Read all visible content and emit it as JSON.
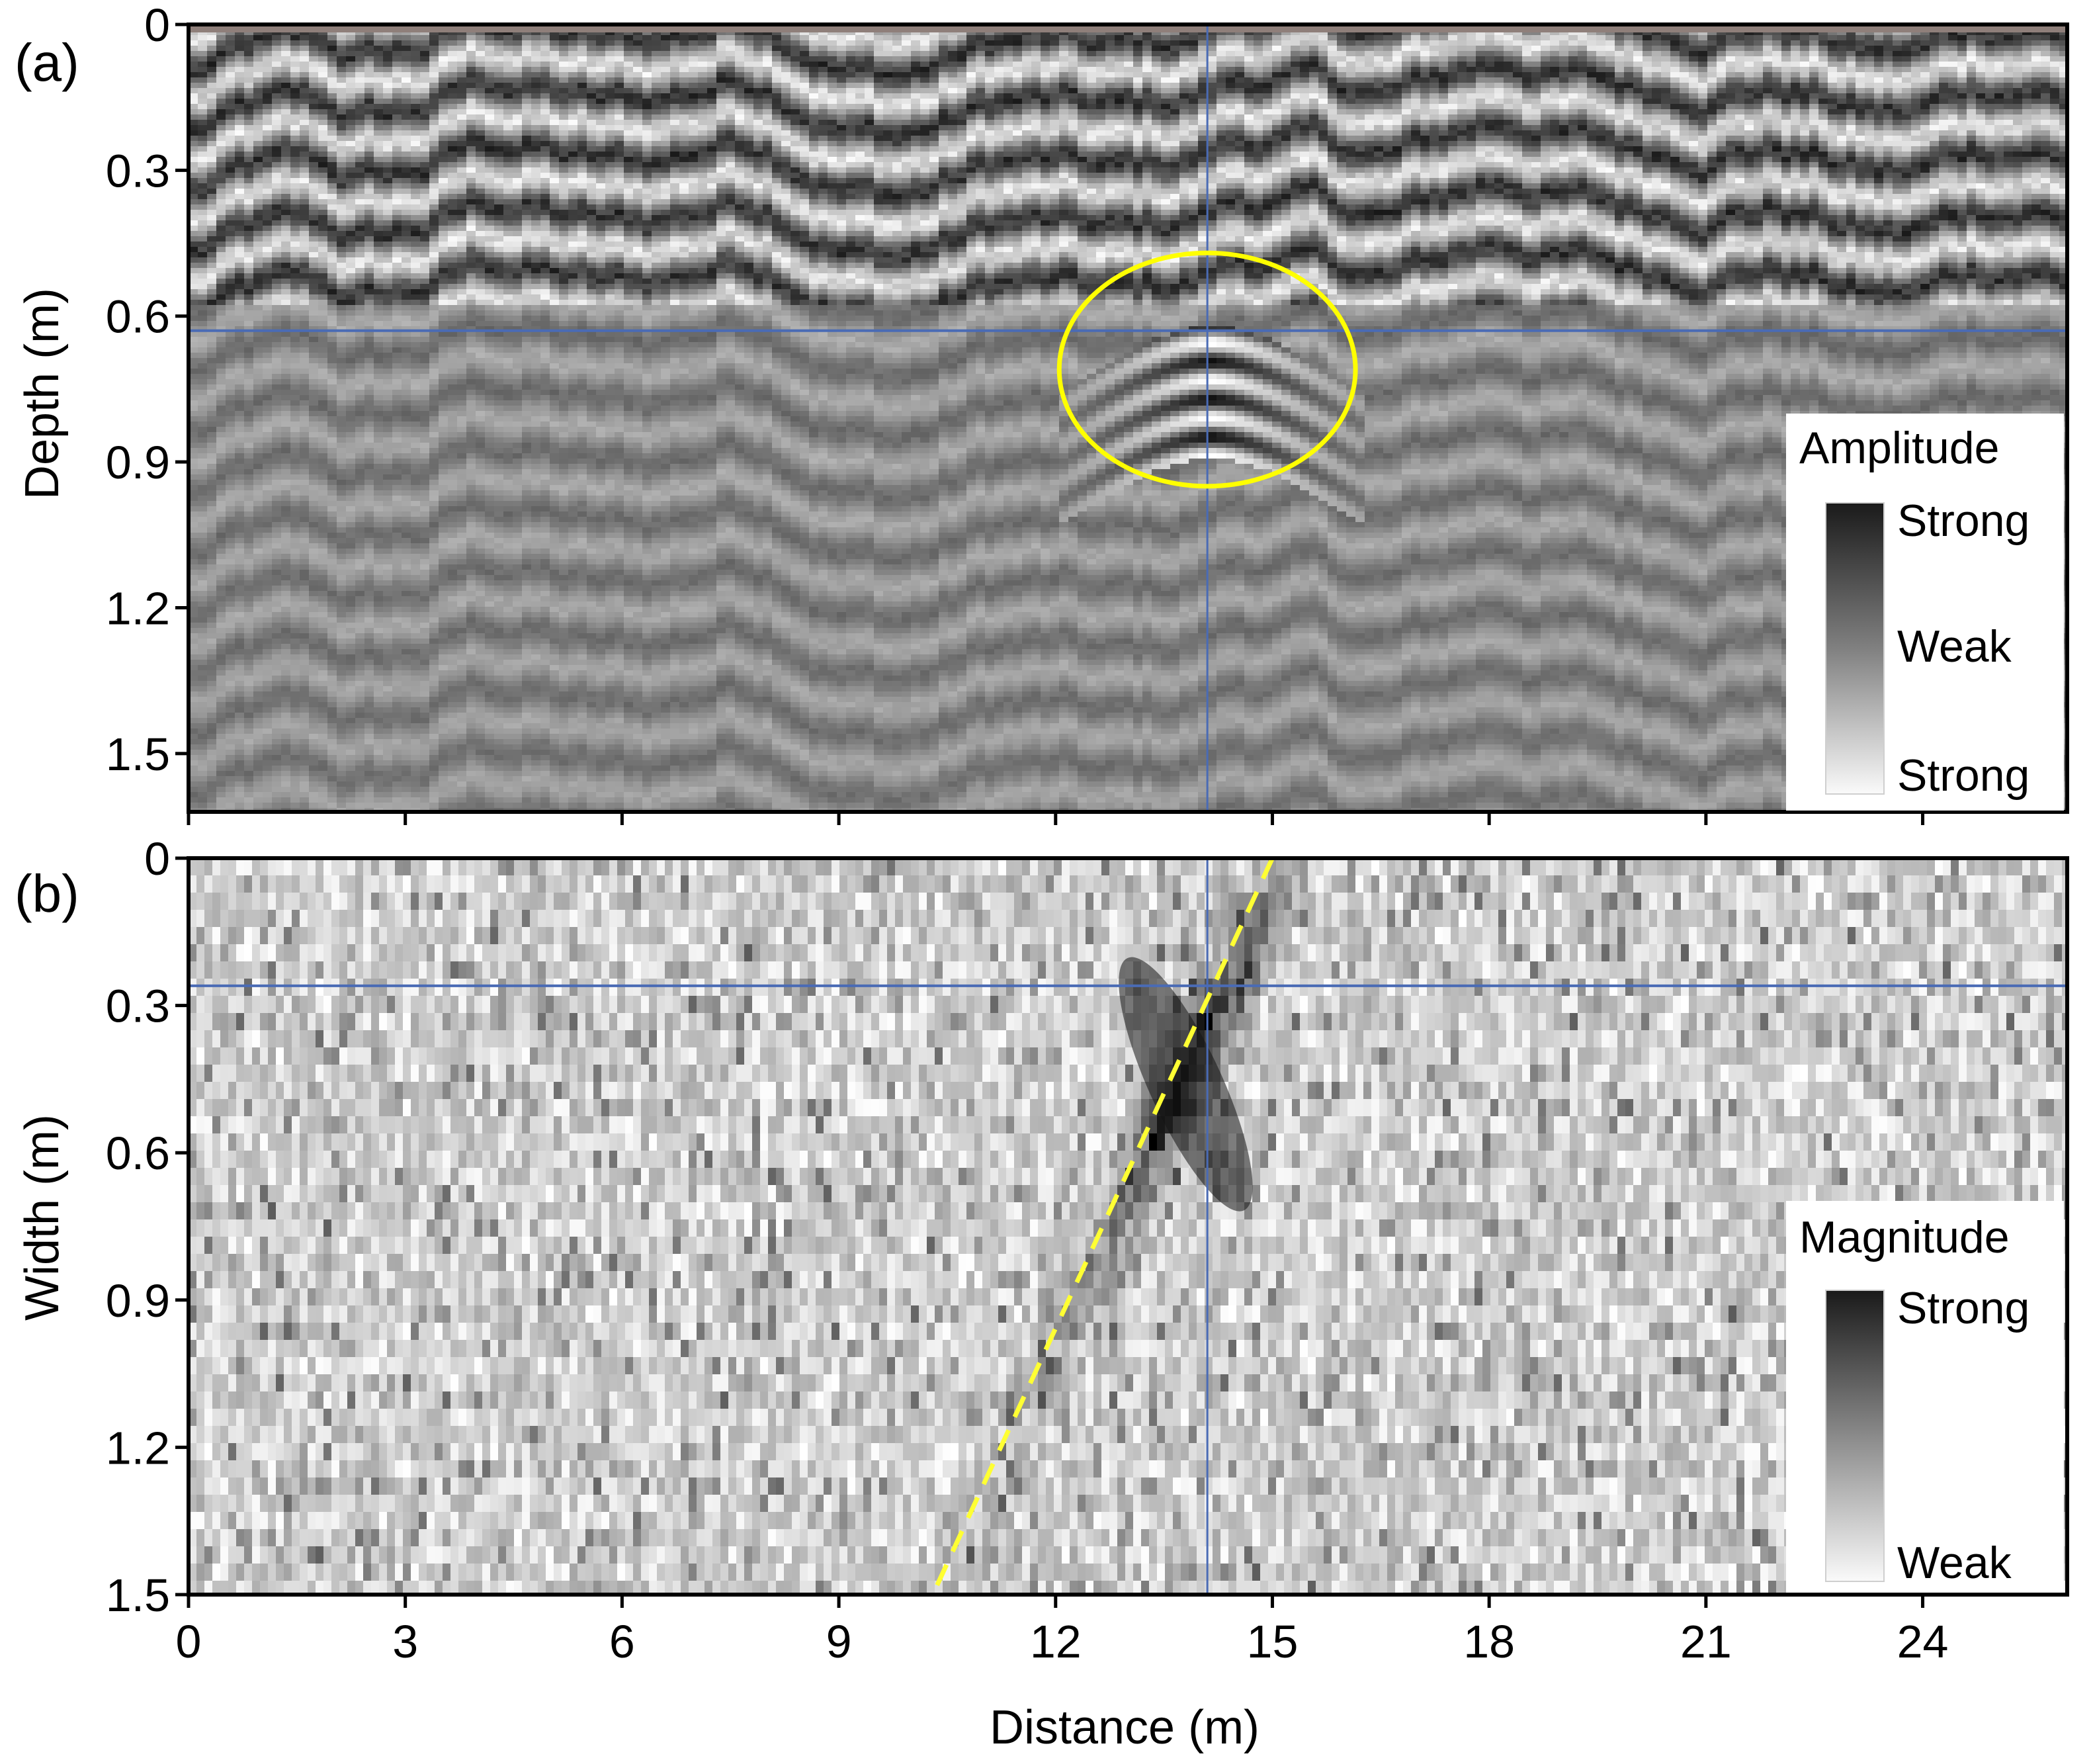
{
  "chart_data": [
    {
      "type": "heatmap",
      "panel_label": "(a)",
      "ylabel": "Depth (m)",
      "xlabel": "Distance (m)",
      "xlim": [
        0,
        26
      ],
      "ylim": [
        0,
        1.62
      ],
      "x_ticks": [
        0,
        3,
        6,
        9,
        12,
        15,
        18,
        21,
        24
      ],
      "y_ticks": [
        "0",
        "0.3",
        "0.6",
        "0.9",
        "1.2",
        "1.5"
      ],
      "y_tick_values": [
        0,
        0.3,
        0.6,
        0.9,
        1.2,
        1.5
      ],
      "colorbar": {
        "title": "Amplitude",
        "labels": [
          "Strong",
          "Weak",
          "Strong"
        ],
        "colors": [
          "#1a1a1a",
          "#808080",
          "#fafafa"
        ]
      },
      "crosshair": {
        "x": 14.1,
        "y": 0.63,
        "color": "#4a6bb5"
      },
      "annotation_ellipse": {
        "cx": 14.1,
        "cy": 0.71,
        "rx": 2.05,
        "ry": 0.24,
        "color": "#ffff00"
      },
      "hyperbola_apex": {
        "x": 14.1,
        "y": 0.63
      }
    },
    {
      "type": "heatmap",
      "panel_label": "(b)",
      "ylabel": "Width (m)",
      "xlabel": "Distance (m)",
      "xlim": [
        0,
        26
      ],
      "ylim": [
        0,
        1.5
      ],
      "x_ticks": [
        0,
        3,
        6,
        9,
        12,
        15,
        18,
        21,
        24
      ],
      "x_tick_labels": [
        "0",
        "3",
        "6",
        "9",
        "12",
        "15",
        "18",
        "21",
        "24"
      ],
      "y_ticks": [
        "0",
        "0.3",
        "0.6",
        "0.9",
        "1.2",
        "1.5"
      ],
      "y_tick_values": [
        0,
        0.3,
        0.6,
        0.9,
        1.2,
        1.5
      ],
      "colorbar": {
        "title": "Magnitude",
        "labels": [
          "Strong",
          "Weak"
        ],
        "colors": [
          "#1a1a1a",
          "#fafafa"
        ]
      },
      "crosshair": {
        "x": 14.1,
        "y": 0.26,
        "color": "#4a6bb5"
      },
      "dashed_line": {
        "x1": 15.0,
        "y1": 0.0,
        "x2": 10.3,
        "y2": 1.5,
        "color": "#ffff33"
      },
      "anomaly_center": {
        "x": 13.8,
        "y": 0.42
      }
    }
  ]
}
